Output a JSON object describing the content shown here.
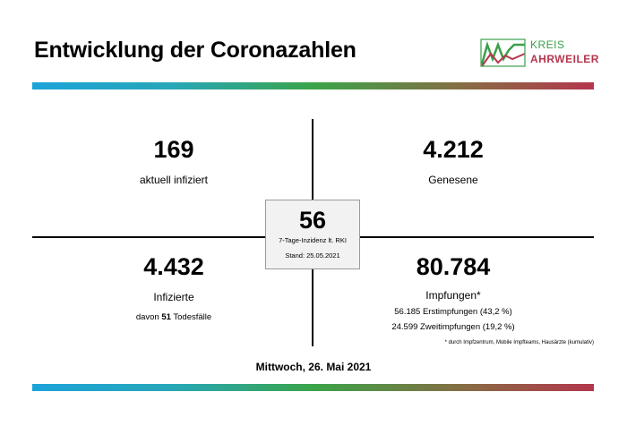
{
  "header": {
    "title": "Entwicklung der Coronazahlen",
    "logo": {
      "line1": "KREIS",
      "line2": "AHRWEILER",
      "colors": {
        "green": "#3aa04a",
        "red": "#b5364d"
      }
    }
  },
  "accent_gradient": [
    "#1ca3d9",
    "#3aa449",
    "#b3364d"
  ],
  "stats": {
    "active": {
      "value": "169",
      "label": "aktuell infiziert"
    },
    "recovered": {
      "value": "4.212",
      "label": "Genesene"
    },
    "infected": {
      "value": "4.432",
      "label": "Infizierte",
      "deaths_prefix": "davon ",
      "deaths_value": "51",
      "deaths_suffix": " Todesfälle"
    },
    "vaccinations": {
      "value": "80.784",
      "label": "Impfungen*",
      "first": "56.185 Erstimpfungen (43,2 %)",
      "second": "24.599 Zweitimpfungen (19,2 %)"
    },
    "incidence": {
      "value": "56",
      "label": "7-Tage-Inzidenz lt. RKI",
      "stand": "Stand: 25.05.2021"
    }
  },
  "footnote": "* durch Impfzentrum, Mobile Impfteams, Hausärzte (kumulativ)",
  "date": "Mittwoch, 26. Mai 2021"
}
